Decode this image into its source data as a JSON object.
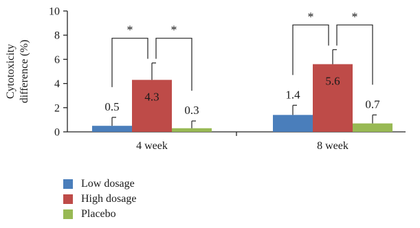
{
  "chart_data": {
    "type": "bar",
    "categories": [
      "4 week",
      "8 week"
    ],
    "series": [
      {
        "name": "Low dosage",
        "color": "#4a7ebb",
        "values": [
          0.5,
          1.4
        ],
        "errors": [
          0.7,
          0.8
        ],
        "labels": [
          "0.5",
          "1.4"
        ]
      },
      {
        "name": "High dosage",
        "color": "#be4b48",
        "values": [
          4.3,
          5.6
        ],
        "errors": [
          1.4,
          1.2
        ],
        "labels": [
          "4.3",
          "5.6"
        ]
      },
      {
        "name": "Placebo",
        "color": "#98b954",
        "values": [
          0.3,
          0.7
        ],
        "errors": [
          0.6,
          0.7
        ],
        "labels": [
          "0.3",
          "0.7"
        ]
      }
    ],
    "ylabel_line1": "Cytotoxicity",
    "ylabel_line2": "difference (%)",
    "xlabel": "",
    "ylim": [
      0,
      10
    ],
    "yticks": [
      0,
      2,
      4,
      6,
      8,
      10
    ],
    "grid": false,
    "significance_marker": "*",
    "legend_position": "bottom-left"
  }
}
